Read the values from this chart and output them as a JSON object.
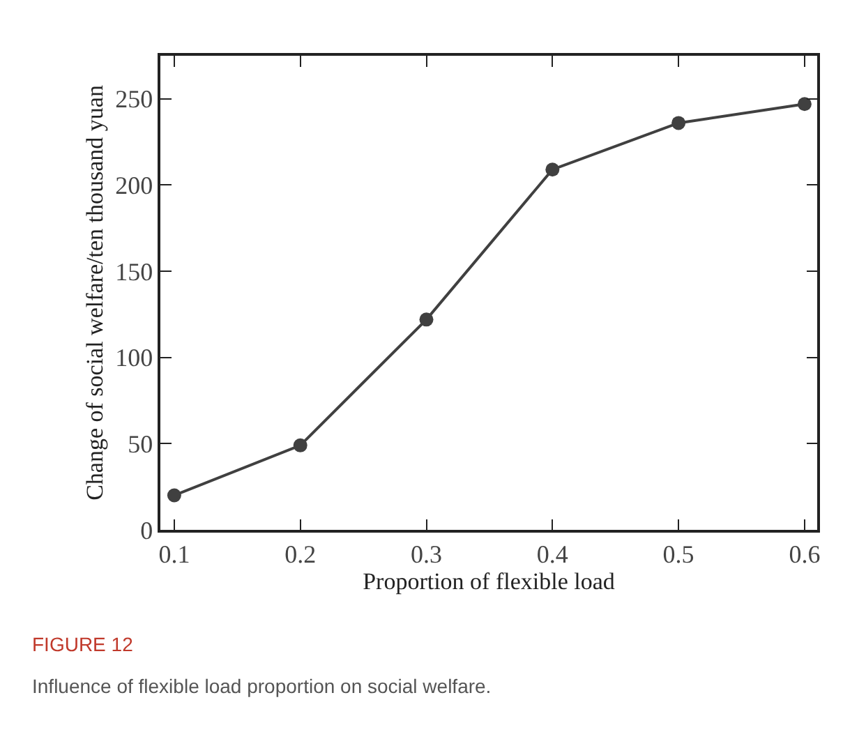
{
  "chart_data": {
    "type": "line",
    "xlabel": "Proportion of flexible load",
    "ylabel": "Change of social welfare/ten thousand yuan",
    "x": [
      0.1,
      0.2,
      0.3,
      0.4,
      0.5,
      0.6
    ],
    "series": [
      {
        "color": "#404040",
        "values": [
          20,
          49,
          122,
          209,
          236,
          247
        ]
      }
    ],
    "xlim": [
      0.089,
      0.61
    ],
    "xticks": [
      {
        "value": 0.1,
        "label": "0.1"
      },
      {
        "value": 0.2,
        "label": "0.2"
      },
      {
        "value": 0.3,
        "label": "0.3"
      },
      {
        "value": 0.4,
        "label": "0.4"
      },
      {
        "value": 0.5,
        "label": "0.5"
      },
      {
        "value": 0.6,
        "label": "0.6"
      }
    ],
    "ylim": [
      0,
      275
    ],
    "yticks": [
      0,
      50,
      100,
      150,
      200,
      250
    ],
    "marker": "circle",
    "line_style": "solid",
    "annotations": [
      "FIGURE 12",
      "Influence of flexible load proportion on social welfare."
    ]
  }
}
